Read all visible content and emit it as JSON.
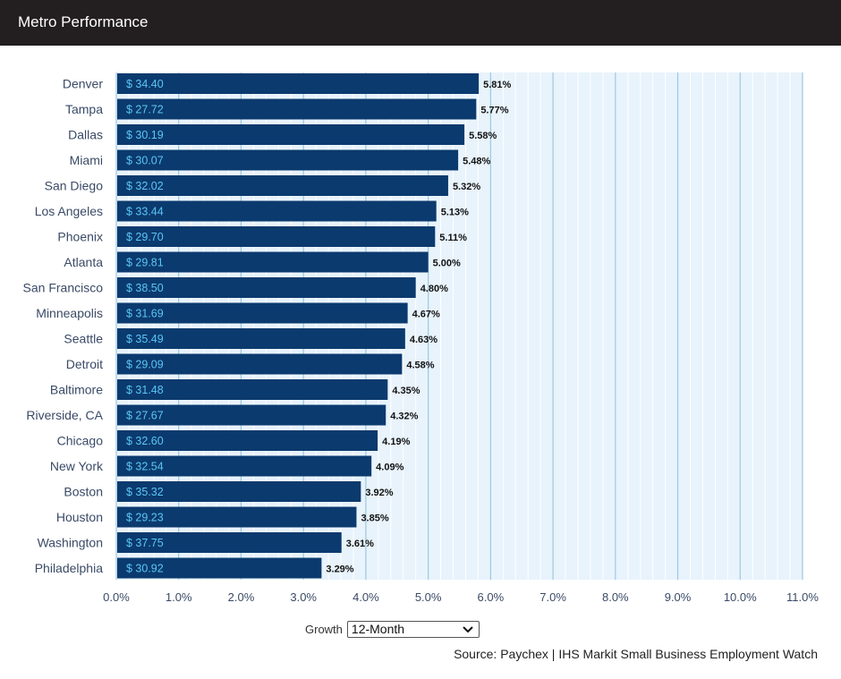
{
  "header": {
    "title": "Metro Performance"
  },
  "controls": {
    "growth_label": "Growth",
    "growth_selected": "12-Month",
    "chevron_icon": "chevron-down-icon"
  },
  "source": "Source: Paychex | IHS Markit Small Business Employment Watch",
  "colors": {
    "bar": "#0b3a6e",
    "bar_value_text": "#5cc6f5",
    "plot_background": "#e8f3fc",
    "gridline": "#9ec8df",
    "axis_text": "#3a4a66"
  },
  "chart_data": {
    "type": "bar",
    "orientation": "horizontal",
    "title": "",
    "xlabel": "",
    "ylabel": "",
    "xlim": [
      0,
      11
    ],
    "x_ticks": [
      "0.0%",
      "1.0%",
      "2.0%",
      "3.0%",
      "4.0%",
      "5.0%",
      "6.0%",
      "7.0%",
      "8.0%",
      "9.0%",
      "10.0%",
      "11.0%"
    ],
    "grid": true,
    "categories": [
      "Denver",
      "Tampa",
      "Dallas",
      "Miami",
      "San Diego",
      "Los Angeles",
      "Phoenix",
      "Atlanta",
      "San Francisco",
      "Minneapolis",
      "Seattle",
      "Detroit",
      "Baltimore",
      "Riverside, CA",
      "Chicago",
      "New York",
      "Boston",
      "Houston",
      "Washington",
      "Philadelphia"
    ],
    "values": [
      5.81,
      5.77,
      5.58,
      5.48,
      5.32,
      5.13,
      5.11,
      5.0,
      4.8,
      4.67,
      4.63,
      4.58,
      4.35,
      4.32,
      4.19,
      4.09,
      3.92,
      3.85,
      3.61,
      3.29
    ],
    "value_labels": [
      "5.81%",
      "5.77%",
      "5.58%",
      "5.48%",
      "5.32%",
      "5.13%",
      "5.11%",
      "5.00%",
      "4.80%",
      "4.67%",
      "4.63%",
      "4.58%",
      "4.35%",
      "4.32%",
      "4.19%",
      "4.09%",
      "3.92%",
      "3.85%",
      "3.61%",
      "3.29%"
    ],
    "wage_labels": [
      "$ 34.40",
      "$ 27.72",
      "$ 30.19",
      "$ 30.07",
      "$ 32.02",
      "$ 33.44",
      "$ 29.70",
      "$ 29.81",
      "$ 38.50",
      "$ 31.69",
      "$ 35.49",
      "$ 29.09",
      "$ 31.48",
      "$ 27.67",
      "$ 32.60",
      "$ 32.54",
      "$ 35.32",
      "$ 29.23",
      "$ 37.75",
      "$ 30.92"
    ]
  }
}
